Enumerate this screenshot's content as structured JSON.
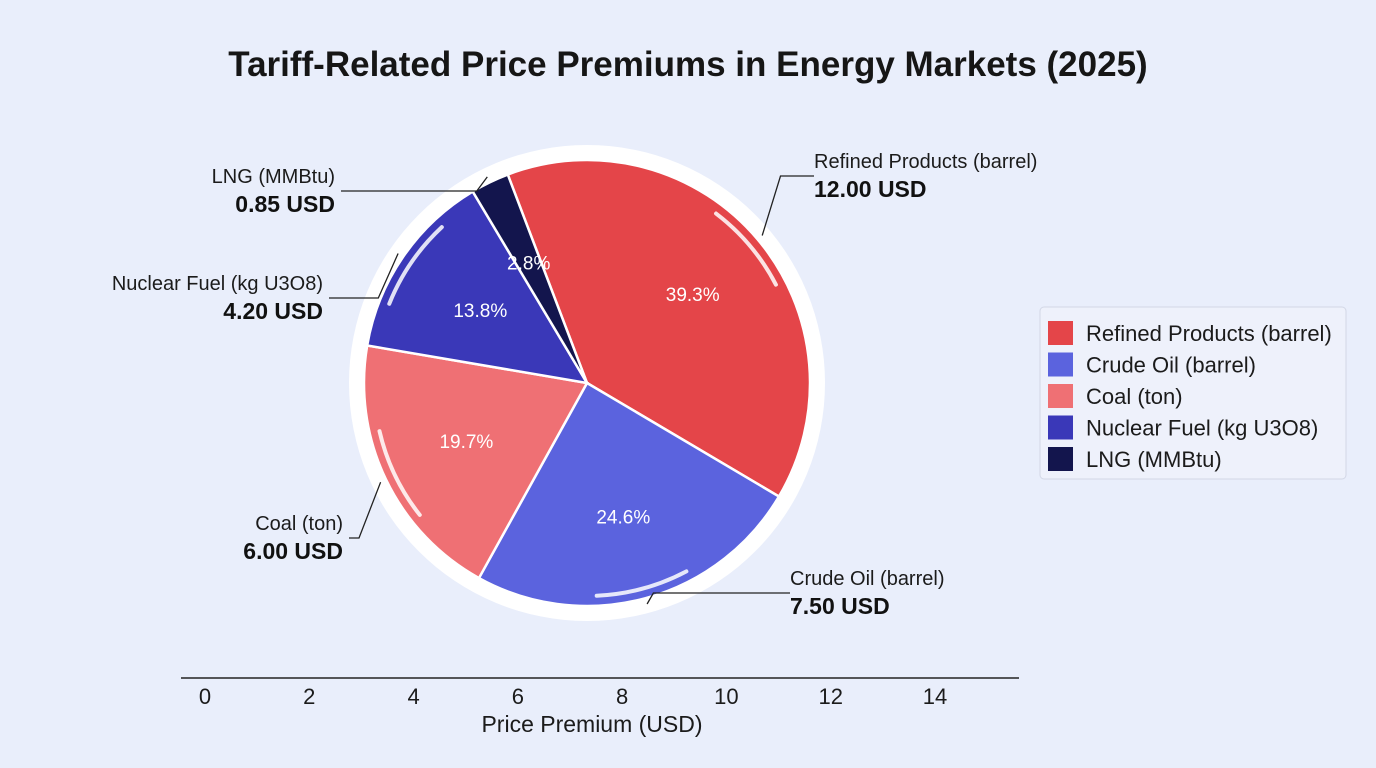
{
  "chart_data": {
    "type": "pie",
    "title": "Tariff-Related Price Premiums in Energy Markets (2025)",
    "xlabel": "Price Premium (USD)",
    "x_ticks": [
      "0",
      "2",
      "4",
      "6",
      "8",
      "10",
      "12",
      "14"
    ],
    "xlim": [
      0,
      14
    ],
    "unit": "USD",
    "legend_position": "right",
    "slices": [
      {
        "name": "Refined Products (barrel)",
        "value": 12.0,
        "value_label": "12.00 USD",
        "percent_label": "39.3%",
        "color": "#e44549"
      },
      {
        "name": "Crude Oil (barrel)",
        "value": 7.5,
        "value_label": "7.50 USD",
        "percent_label": "24.6%",
        "color": "#5b63de"
      },
      {
        "name": "Coal (ton)",
        "value": 6.0,
        "value_label": "6.00 USD",
        "percent_label": "19.7%",
        "color": "#ef7074"
      },
      {
        "name": "Nuclear Fuel (kg U3O8)",
        "value": 4.2,
        "value_label": "4.20 USD",
        "percent_label": "13.8%",
        "color": "#3a38b8"
      },
      {
        "name": "LNG (MMBtu)",
        "value": 0.85,
        "value_label": "0.85 USD",
        "percent_label": "2.8%",
        "color": "#13154d"
      }
    ]
  }
}
